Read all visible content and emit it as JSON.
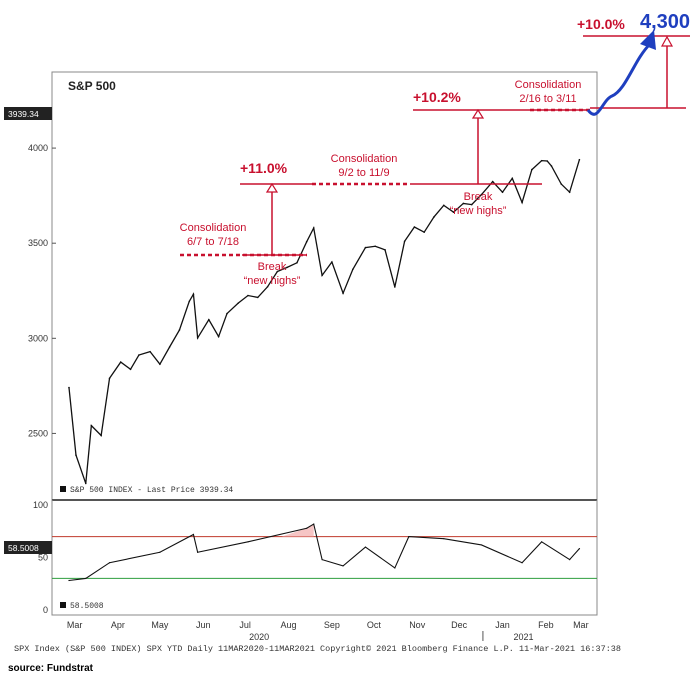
{
  "chart_data": {
    "type": "line",
    "title": "S&P 500",
    "y_ticks": [
      2500,
      3000,
      3500,
      4000
    ],
    "ylim": [
      2150,
      4400
    ],
    "x_ticks": [
      "Mar",
      "Apr",
      "May",
      "Jun",
      "Jul",
      "Aug",
      "Sep",
      "Oct",
      "Nov",
      "Dec",
      "Jan",
      "Feb",
      "Mar"
    ],
    "year_labels": [
      "2020",
      "2021"
    ],
    "last_price_label": "3939.34",
    "legend_main": "S&P 500 INDEX - Last Price 3939.34",
    "series": [
      {
        "name": "S&P 500 INDEX",
        "x": [
          "2020-03-11",
          "2020-03-16",
          "2020-03-23",
          "2020-03-27",
          "2020-04-03",
          "2020-04-09",
          "2020-04-17",
          "2020-04-24",
          "2020-04-30",
          "2020-05-08",
          "2020-05-15",
          "2020-05-22",
          "2020-05-29",
          "2020-06-05",
          "2020-06-08",
          "2020-06-11",
          "2020-06-19",
          "2020-06-26",
          "2020-07-02",
          "2020-07-10",
          "2020-07-17",
          "2020-07-24",
          "2020-07-31",
          "2020-08-07",
          "2020-08-14",
          "2020-08-21",
          "2020-08-28",
          "2020-09-02",
          "2020-09-08",
          "2020-09-15",
          "2020-09-23",
          "2020-09-30",
          "2020-10-09",
          "2020-10-16",
          "2020-10-23",
          "2020-10-30",
          "2020-11-06",
          "2020-11-13",
          "2020-11-20",
          "2020-11-27",
          "2020-12-04",
          "2020-12-11",
          "2020-12-18",
          "2020-12-24",
          "2020-12-31",
          "2021-01-08",
          "2021-01-15",
          "2021-01-22",
          "2021-01-29",
          "2021-02-05",
          "2021-02-12",
          "2021-02-16",
          "2021-02-19",
          "2021-02-26",
          "2021-03-04",
          "2021-03-11"
        ],
        "values": [
          2741,
          2386,
          2237,
          2541,
          2489,
          2790,
          2875,
          2837,
          2912,
          2930,
          2864,
          2955,
          3044,
          3194,
          3232,
          3002,
          3098,
          3009,
          3130,
          3185,
          3225,
          3215,
          3271,
          3351,
          3373,
          3397,
          3508,
          3580,
          3331,
          3401,
          3237,
          3363,
          3477,
          3484,
          3465,
          3270,
          3510,
          3585,
          3558,
          3638,
          3699,
          3663,
          3709,
          3703,
          3756,
          3824,
          3768,
          3841,
          3714,
          3887,
          3934,
          3932,
          3906,
          3811,
          3768,
          3939
        ]
      },
      {
        "name": "RSI",
        "x": [
          "2020-03-11",
          "2020-03-23",
          "2020-04-09",
          "2020-05-15",
          "2020-06-08",
          "2020-06-11",
          "2020-07-17",
          "2020-08-28",
          "2020-09-02",
          "2020-09-08",
          "2020-09-23",
          "2020-10-09",
          "2020-10-30",
          "2020-11-09",
          "2020-12-04",
          "2020-12-31",
          "2021-01-29",
          "2021-02-12",
          "2021-03-04",
          "2021-03-11"
        ],
        "values": [
          28,
          30,
          45,
          55,
          72,
          55,
          65,
          78,
          82,
          48,
          42,
          60,
          40,
          70,
          68,
          62,
          45,
          65,
          48,
          58.5
        ]
      }
    ],
    "rsi": {
      "y_ticks": [
        0,
        50,
        100
      ],
      "ylim": [
        -5,
        105
      ],
      "upper": 70,
      "lower": 30,
      "last_label": "58.5008",
      "legend": "58.5008"
    },
    "annotations": {
      "c1_title": "Consolidation",
      "c1_dates": "6/7 to 7/18",
      "c1_gain": "+11.0%",
      "b1_line1": "Break",
      "b1_line2": "“new highs”",
      "c2_title": "Consolidation",
      "c2_dates": "9/2 to 11/9",
      "c2_gain": "+10.2%",
      "b2_line1": "Break",
      "b2_line2": "“new highs”",
      "c3_title": "Consolidation",
      "c3_dates": "2/16 to 3/11",
      "c3_gain": "+10.0%",
      "target": "4,300"
    },
    "colors": {
      "annotation": "#c8102e",
      "target": "#1f3fbf",
      "price": "#111111",
      "rsi_upper": "#c0392b",
      "rsi_lower": "#2e9e3e",
      "overbought_fill": "#f4b6b6"
    }
  },
  "footer": "SPX Index (S&P 500 INDEX) SPX YTD  Daily 11MAR2020-11MAR2021  Copyright© 2021 Bloomberg Finance L.P.  11-Mar-2021 16:37:38",
  "source": "source: Fundstrat"
}
